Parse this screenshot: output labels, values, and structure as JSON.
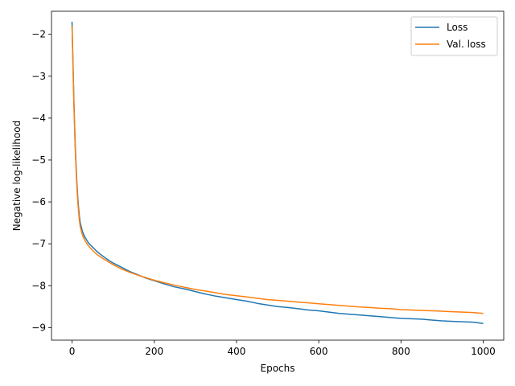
{
  "chart_data": {
    "type": "line",
    "xlabel": "Epochs",
    "ylabel": "Negative log-likelihood",
    "xlim": [
      -50,
      1050
    ],
    "ylim": [
      -9.3,
      -1.45
    ],
    "x_ticks": [
      0,
      200,
      400,
      600,
      800,
      1000
    ],
    "x_tick_labels": [
      "0",
      "200",
      "400",
      "600",
      "800",
      "1000"
    ],
    "y_ticks": [
      -2,
      -3,
      -4,
      -5,
      -6,
      -7,
      -8,
      -9
    ],
    "y_tick_labels": [
      "−2",
      "−3",
      "−4",
      "−5",
      "−6",
      "−7",
      "−8",
      "−9"
    ],
    "grid": false,
    "legend": {
      "position": "top-right"
    },
    "series": [
      {
        "name": "Loss",
        "color": "#1f77b4",
        "x": [
          0,
          2,
          4,
          6,
          8,
          10,
          12,
          14,
          16,
          18,
          20,
          25,
          30,
          35,
          40,
          50,
          60,
          70,
          80,
          90,
          100,
          120,
          140,
          160,
          180,
          200,
          225,
          250,
          275,
          300,
          325,
          350,
          375,
          400,
          425,
          450,
          475,
          500,
          525,
          550,
          575,
          600,
          625,
          650,
          675,
          700,
          725,
          750,
          775,
          800,
          825,
          850,
          875,
          900,
          925,
          950,
          975,
          1000
        ],
        "y": [
          -1.7,
          -2.6,
          -3.4,
          -4.1,
          -4.7,
          -5.2,
          -5.6,
          -5.9,
          -6.15,
          -6.35,
          -6.5,
          -6.7,
          -6.82,
          -6.9,
          -6.98,
          -7.08,
          -7.18,
          -7.26,
          -7.33,
          -7.4,
          -7.46,
          -7.56,
          -7.66,
          -7.74,
          -7.82,
          -7.88,
          -7.96,
          -8.03,
          -8.08,
          -8.14,
          -8.2,
          -8.25,
          -8.29,
          -8.33,
          -8.37,
          -8.42,
          -8.46,
          -8.5,
          -8.52,
          -8.55,
          -8.58,
          -8.6,
          -8.63,
          -8.66,
          -8.68,
          -8.7,
          -8.72,
          -8.74,
          -8.76,
          -8.78,
          -8.79,
          -8.8,
          -8.82,
          -8.84,
          -8.85,
          -8.86,
          -8.87,
          -8.9
        ]
      },
      {
        "name": "Val. loss",
        "color": "#ff7f0e",
        "x": [
          0,
          2,
          4,
          6,
          8,
          10,
          12,
          14,
          16,
          18,
          20,
          25,
          30,
          35,
          40,
          50,
          60,
          70,
          80,
          90,
          100,
          120,
          140,
          160,
          180,
          200,
          225,
          250,
          275,
          300,
          325,
          350,
          375,
          400,
          425,
          450,
          475,
          500,
          525,
          550,
          575,
          600,
          625,
          650,
          675,
          700,
          725,
          750,
          775,
          800,
          825,
          850,
          875,
          900,
          925,
          950,
          975,
          1000
        ],
        "y": [
          -1.8,
          -2.7,
          -3.5,
          -4.2,
          -4.8,
          -5.3,
          -5.7,
          -6.0,
          -6.25,
          -6.45,
          -6.6,
          -6.78,
          -6.9,
          -6.98,
          -7.05,
          -7.16,
          -7.25,
          -7.32,
          -7.38,
          -7.44,
          -7.5,
          -7.6,
          -7.68,
          -7.75,
          -7.81,
          -7.87,
          -7.93,
          -7.99,
          -8.04,
          -8.09,
          -8.13,
          -8.17,
          -8.21,
          -8.24,
          -8.27,
          -8.3,
          -8.33,
          -8.35,
          -8.37,
          -8.39,
          -8.41,
          -8.43,
          -8.45,
          -8.47,
          -8.49,
          -8.51,
          -8.52,
          -8.54,
          -8.55,
          -8.57,
          -8.58,
          -8.59,
          -8.6,
          -8.61,
          -8.62,
          -8.63,
          -8.64,
          -8.66
        ]
      }
    ]
  }
}
